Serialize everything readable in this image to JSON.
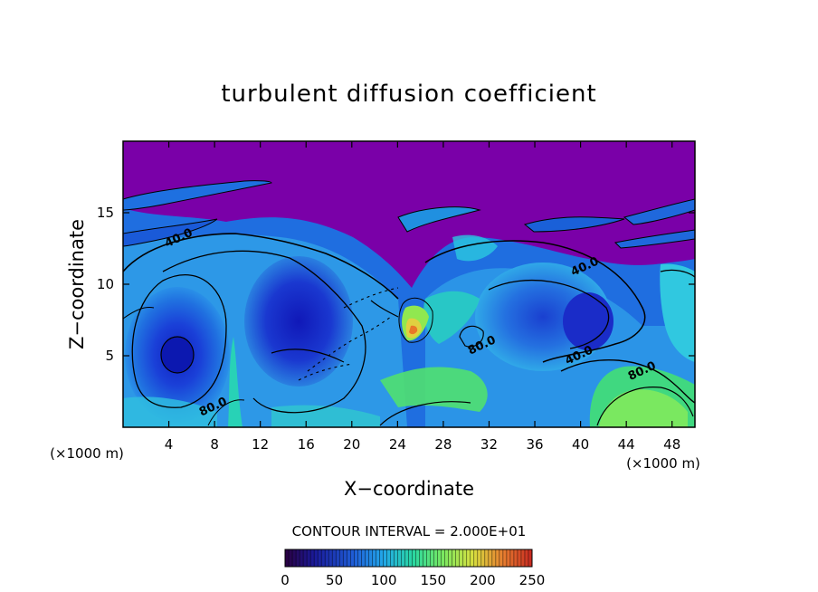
{
  "chart_data": {
    "type": "heatmap",
    "title": "turbulent diffusion coefficient",
    "xlabel": "X−coordinate",
    "ylabel": "Z−coordinate",
    "x_unit": "(×1000 m)",
    "x_unit_right": "(×1000 m)",
    "xlim": [
      0,
      50
    ],
    "ylim": [
      0,
      20
    ],
    "x_ticks": [
      4,
      8,
      12,
      16,
      20,
      24,
      28,
      32,
      36,
      40,
      44,
      48
    ],
    "x_tick_labels": [
      "4",
      "8",
      "12",
      "16",
      "20",
      "24",
      "28",
      "32",
      "36",
      "40",
      "44",
      "48"
    ],
    "y_ticks": [
      5,
      10,
      15
    ],
    "y_tick_labels": [
      "5",
      "10",
      "15"
    ],
    "contour_interval_text": "CONTOUR INTERVAL = 2.000E+01",
    "contour_labels": [
      {
        "x": 8.0,
        "y": 1.2,
        "text": "80.0"
      },
      {
        "x": 40.0,
        "y": 4.8,
        "text": "40.0"
      },
      {
        "x": 31.5,
        "y": 5.5,
        "text": "80.0"
      },
      {
        "x": 45.5,
        "y": 3.7,
        "text": "80.0"
      },
      {
        "x": 40.5,
        "y": 11.0,
        "text": "40.0"
      },
      {
        "x": 5.0,
        "y": 13.0,
        "text": "40.0"
      }
    ],
    "colorbar": {
      "min": 0,
      "max": 250,
      "ticks": [
        0,
        50,
        100,
        150,
        200,
        250
      ],
      "tick_labels": [
        "0",
        "50",
        "100",
        "150",
        "200",
        "250"
      ],
      "colors": [
        "#2a0040",
        "#1a1a9a",
        "#1f5fd8",
        "#22a8e8",
        "#2ad8a0",
        "#7ae860",
        "#d8e040",
        "#e88030",
        "#c82820"
      ]
    },
    "background_color": "#7a00a8"
  }
}
